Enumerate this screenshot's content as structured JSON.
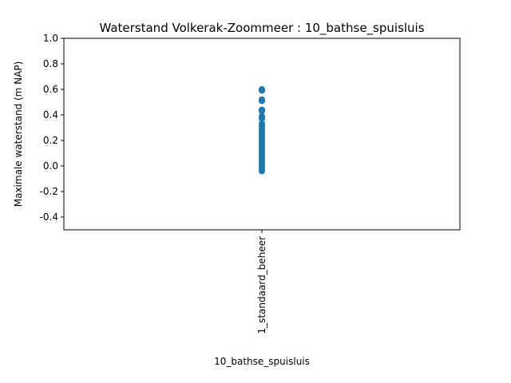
{
  "chart_data": {
    "type": "scatter",
    "title": "Waterstand Volkerak-Zoommeer : 10_bathse_spuisluis",
    "xlabel": "10_bathse_spuisluis",
    "ylabel": "Maximale waterstand (m NAP)",
    "categories": [
      "1_standaard_beheer"
    ],
    "ylim": [
      -0.5,
      1.0
    ],
    "yticks": [
      "-0.4",
      "-0.2",
      "0.0",
      "0.2",
      "0.4",
      "0.6",
      "0.8",
      "1.0"
    ],
    "grid": false,
    "legend": "none",
    "series": [
      {
        "category": "1_standaard_beheer",
        "color": "#1f77b4",
        "values": [
          0.6,
          0.59,
          0.52,
          0.51,
          0.44,
          0.43,
          0.39,
          0.37,
          0.33,
          0.31,
          0.29,
          0.27,
          0.25,
          0.23,
          0.21,
          0.19,
          0.17,
          0.15,
          0.13,
          0.11,
          0.09,
          0.07,
          0.05,
          0.03,
          0.01,
          -0.01,
          -0.03,
          -0.04
        ]
      }
    ]
  }
}
